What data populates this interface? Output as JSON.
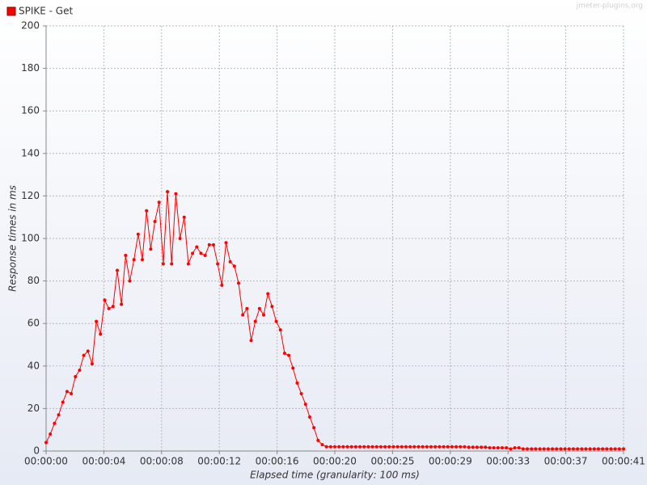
{
  "chart_data": {
    "type": "line",
    "watermark": "jmeter-plugins.org",
    "xlabel": "Elapsed time (granularity: 100 ms)",
    "ylabel": "Response times in ms",
    "grid": true,
    "legend": "top-left",
    "markers": true,
    "xlim": [
      0,
      41.4
    ],
    "xticks": [
      {
        "value": 0,
        "label": "00:00:00"
      },
      {
        "value": 4.14,
        "label": "00:00:04"
      },
      {
        "value": 8.28,
        "label": "00:00:08"
      },
      {
        "value": 12.42,
        "label": "00:00:12"
      },
      {
        "value": 16.56,
        "label": "00:00:16"
      },
      {
        "value": 20.7,
        "label": "00:00:20"
      },
      {
        "value": 24.84,
        "label": "00:00:25"
      },
      {
        "value": 28.98,
        "label": "00:00:29"
      },
      {
        "value": 33.12,
        "label": "00:00:33"
      },
      {
        "value": 37.26,
        "label": "00:00:37"
      },
      {
        "value": 41.4,
        "label": "00:00:41"
      }
    ],
    "ylim": [
      0,
      200
    ],
    "yticks": [
      0,
      20,
      40,
      60,
      80,
      100,
      120,
      140,
      160,
      180,
      200
    ],
    "x": [
      0,
      0.3,
      0.6,
      0.9,
      1.2,
      1.5,
      1.8,
      2.1,
      2.4,
      2.7,
      3,
      3.3,
      3.6,
      3.9,
      4.2,
      4.5,
      4.8,
      5.1,
      5.4,
      5.7,
      6,
      6.3,
      6.6,
      6.9,
      7.2,
      7.5,
      7.8,
      8.1,
      8.4,
      8.7,
      9,
      9.3,
      9.6,
      9.9,
      10.2,
      10.5,
      10.8,
      11.1,
      11.4,
      11.7,
      12,
      12.3,
      12.6,
      12.9,
      13.2,
      13.5,
      13.8,
      14.1,
      14.4,
      14.7,
      15,
      15.3,
      15.6,
      15.9,
      16.2,
      16.5,
      16.8,
      17.1,
      17.4,
      17.7,
      18,
      18.3,
      18.6,
      18.9,
      19.2,
      19.5,
      19.8,
      20.1,
      20.4,
      20.7,
      21,
      21.3,
      21.6,
      21.9,
      22.2,
      22.5,
      22.8,
      23.1,
      23.4,
      23.7,
      24,
      24.3,
      24.6,
      24.9,
      25.2,
      25.5,
      25.8,
      26.1,
      26.4,
      26.7,
      27,
      27.3,
      27.6,
      27.9,
      28.2,
      28.5,
      28.8,
      29.1,
      29.4,
      29.7,
      30,
      30.3,
      30.6,
      30.9,
      31.2,
      31.5,
      31.8,
      32.1,
      32.4,
      32.7,
      33,
      33.3,
      33.6,
      33.9,
      34.2,
      34.5,
      34.8,
      35.1,
      35.4,
      35.7,
      36,
      36.3,
      36.6,
      36.9,
      37.2,
      37.5,
      37.8,
      38.1,
      38.4,
      38.7,
      39,
      39.3,
      39.6,
      39.9,
      40.2,
      40.5,
      40.8,
      41.1,
      41.4
    ],
    "series": [
      {
        "name": "SPIKE - Get",
        "color": "#ff0000",
        "values": [
          4,
          8,
          13,
          17,
          23,
          28,
          27,
          35,
          38,
          45,
          47,
          41,
          61,
          55,
          71,
          67,
          68,
          85,
          69,
          92,
          80,
          90,
          102,
          90,
          113,
          95,
          108,
          117,
          88,
          122,
          88,
          121,
          100,
          110,
          88,
          93,
          96,
          93,
          92,
          97,
          97,
          88,
          78,
          98,
          89,
          87,
          79,
          64,
          67,
          52,
          61,
          67,
          64,
          74,
          68,
          61,
          57,
          46,
          45,
          39,
          32,
          27,
          22,
          16,
          11,
          5,
          3,
          2,
          2,
          2,
          2,
          2,
          2,
          2,
          2,
          2,
          2,
          2,
          2,
          2,
          2,
          2,
          2,
          2,
          2,
          2,
          2,
          2,
          2,
          2,
          2,
          2,
          2,
          2,
          2,
          2,
          2,
          2,
          2,
          2,
          2,
          1.8,
          1.8,
          1.8,
          1.8,
          1.8,
          1.5,
          1.5,
          1.5,
          1.5,
          1.5,
          1,
          1.5,
          1.5,
          1,
          1,
          1,
          1,
          1,
          1,
          1,
          1,
          1,
          1,
          1,
          1,
          1,
          1,
          1,
          1,
          1,
          1,
          1,
          1,
          1,
          1,
          1,
          1,
          1
        ]
      }
    ]
  }
}
